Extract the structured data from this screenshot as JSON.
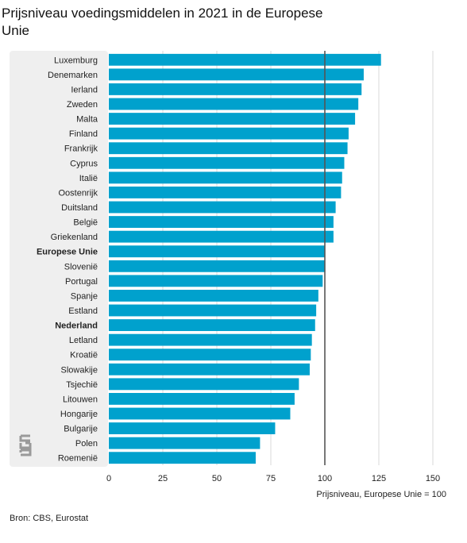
{
  "title": "Prijsniveau voedingsmiddelen in 2021 in de Europese Unie",
  "source": "Bron: CBS, Eurostat",
  "logo_text": "cbs",
  "colors": {
    "bar": "#00a1cd",
    "label_panel": "#efefef",
    "reference_line": "#555555",
    "grid": "#d9d9d9"
  },
  "chart_data": {
    "type": "bar",
    "orientation": "horizontal",
    "title": "Prijsniveau voedingsmiddelen in 2021 in de Europese Unie",
    "xlabel": "Prijsniveau, Europese Unie = 100",
    "ylabel": "",
    "xlim": [
      0,
      150
    ],
    "xticks": [
      0,
      25,
      50,
      75,
      100,
      125,
      150
    ],
    "reference_line": 100,
    "grid": true,
    "highlighted": [
      "Europese Unie",
      "Nederland"
    ],
    "categories": [
      "Luxemburg",
      "Denemarken",
      "Ierland",
      "Zweden",
      "Malta",
      "Finland",
      "Frankrijk",
      "Cyprus",
      "Italië",
      "Oostenrijk",
      "Duitsland",
      "België",
      "Griekenland",
      "Europese Unie",
      "Slovenië",
      "Portugal",
      "Spanje",
      "Estland",
      "Nederland",
      "Letland",
      "Kroatië",
      "Slowakije",
      "Tsjechië",
      "Litouwen",
      "Hongarije",
      "Bulgarije",
      "Polen",
      "Roemenië"
    ],
    "values": [
      126,
      118,
      117,
      115.5,
      114,
      111,
      110.5,
      109,
      108,
      107.5,
      105,
      104,
      104,
      100,
      100,
      99,
      97,
      96,
      95.5,
      94,
      93.5,
      93,
      88,
      86,
      84,
      77,
      70,
      68
    ]
  }
}
